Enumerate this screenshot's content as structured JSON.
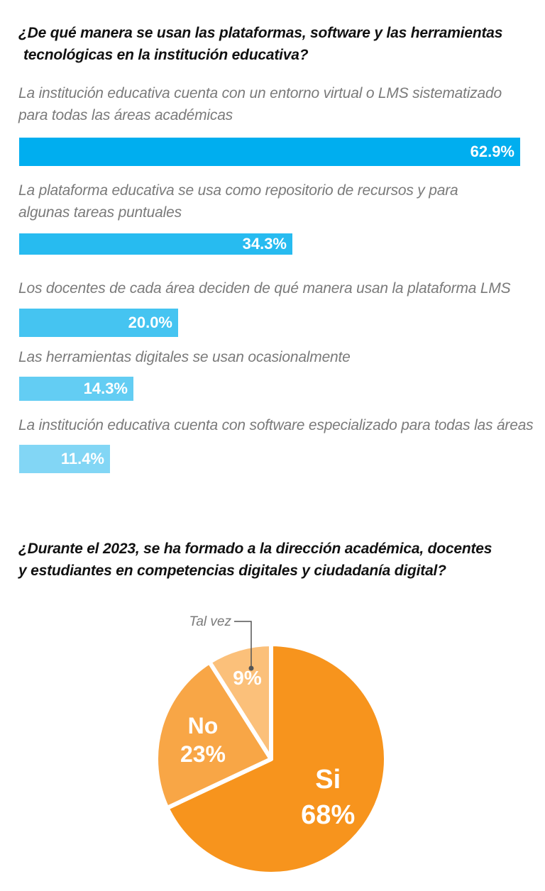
{
  "chart_data": [
    {
      "type": "bar",
      "orientation": "horizontal",
      "title": "¿De qué manera se usan las plataformas, software y las herramientas tecnológicas en la institución educativa?",
      "title_lines": [
        "¿De qué manera se usan las plataformas, software y las herramientas",
        "tecnológicas en la institución educativa?"
      ],
      "unit": "%",
      "categories": [
        "La institución educativa cuenta con un entorno virtual o LMS sistematizado para todas las áreas académicas",
        "La plataforma educativa se usa como repositorio de recursos y para algunas tareas puntuales",
        "Los docentes de cada área deciden de qué manera usan la plataforma LMS",
        "Las herramientas digitales se usan ocasionalmente",
        "La institución educativa cuenta con software especializado para todas las áreas"
      ],
      "category_lines": [
        [
          "La institución educativa cuenta con un entorno virtual o LMS sistematizado",
          "para todas las áreas académicas"
        ],
        [
          "La plataforma educativa se usa como repositorio de recursos y para",
          "algunas tareas puntuales"
        ],
        [
          "Los docentes de cada área deciden de qué manera usan la plataforma LMS"
        ],
        [
          "Las herramientas digitales se usan ocasionalmente"
        ],
        [
          "La institución educativa cuenta con software especializado para todas las áreas"
        ]
      ],
      "values": [
        62.9,
        34.3,
        20.0,
        14.3,
        11.4
      ],
      "value_labels": [
        "62.9%",
        "34.3%",
        "20.0%",
        "14.3%",
        "11.4%"
      ],
      "colors": [
        "#00aeef",
        "#27bbf0",
        "#45c4f1",
        "#63cdf3",
        "#82d6f5"
      ],
      "xlim": [
        0,
        62.9
      ],
      "grid": false,
      "legend": "none"
    },
    {
      "type": "pie",
      "title": "¿Durante el 2023, se ha formado a la dirección académica, docentes y estudiantes en competencias digitales y ciudadanía digital?",
      "title_lines": [
        "¿Durante el 2023, se ha formado a la dirección académica, docentes",
        "y estudiantes en competencias digitales y ciudadanía digital?"
      ],
      "slices": [
        {
          "label": "Si",
          "value": 68,
          "value_label": "68%",
          "color": "#f7941d"
        },
        {
          "label": "No",
          "value": 23,
          "value_label": "23%",
          "color": "#f8a646"
        },
        {
          "label": "Tal vez",
          "value": 9,
          "value_label": "9%",
          "color": "#fbc07a"
        }
      ],
      "legend": "none"
    }
  ]
}
